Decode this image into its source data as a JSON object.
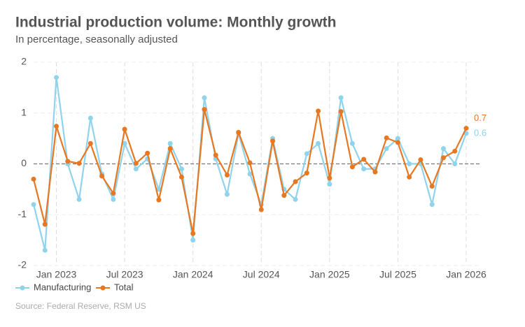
{
  "chart_data": {
    "type": "line",
    "title": "Industrial production volume: Monthly growth",
    "subtitle": "In percentage, seasonally adjusted",
    "source": "Source: Federal Reserve, RSM US",
    "categories": [
      null,
      null,
      "Jan 2023",
      null,
      null,
      null,
      null,
      null,
      "Jul 2023",
      null,
      null,
      null,
      null,
      null,
      "Jan 2024",
      null,
      null,
      null,
      null,
      null,
      "Jul 2024",
      null,
      null,
      null,
      null,
      null,
      "Jan 2025",
      null,
      null,
      null,
      null,
      null,
      "Jul 2025",
      null,
      null,
      null,
      null,
      null,
      "Jan 2026"
    ],
    "series": [
      {
        "name": "Manufacturing",
        "color": "#8fd3ec",
        "end_label": "0.6",
        "values": [
          -0.8,
          -1.7,
          1.7,
          0.0,
          -0.7,
          0.9,
          -0.2,
          -0.7,
          0.4,
          -0.1,
          0.1,
          -0.5,
          0.4,
          -0.1,
          -1.5,
          1.3,
          0.1,
          -0.6,
          0.6,
          -0.2,
          -0.8,
          0.5,
          -0.5,
          -0.7,
          0.2,
          0.4,
          -0.4,
          1.3,
          0.4,
          -0.1,
          -0.1,
          0.3,
          0.5,
          0.0,
          0.0,
          -0.8,
          0.3,
          0.0,
          0.6
        ]
      },
      {
        "name": "Total",
        "color": "#e87722",
        "end_label": "0.7",
        "values": [
          -0.3,
          -1.19,
          0.74,
          0.05,
          0.01,
          0.4,
          -0.24,
          -0.58,
          0.68,
          0.01,
          0.21,
          -0.71,
          0.3,
          -0.26,
          -1.37,
          1.07,
          0.17,
          -0.22,
          0.62,
          0.02,
          -0.9,
          0.45,
          -0.62,
          -0.35,
          -0.18,
          1.04,
          -0.28,
          1.03,
          -0.06,
          0.09,
          -0.16,
          0.51,
          0.42,
          -0.26,
          0.08,
          -0.44,
          0.12,
          0.25,
          0.7
        ]
      }
    ],
    "ylim": [
      -2,
      2
    ],
    "yticks": [
      -2,
      -1,
      0,
      1,
      2
    ],
    "grid": true
  }
}
